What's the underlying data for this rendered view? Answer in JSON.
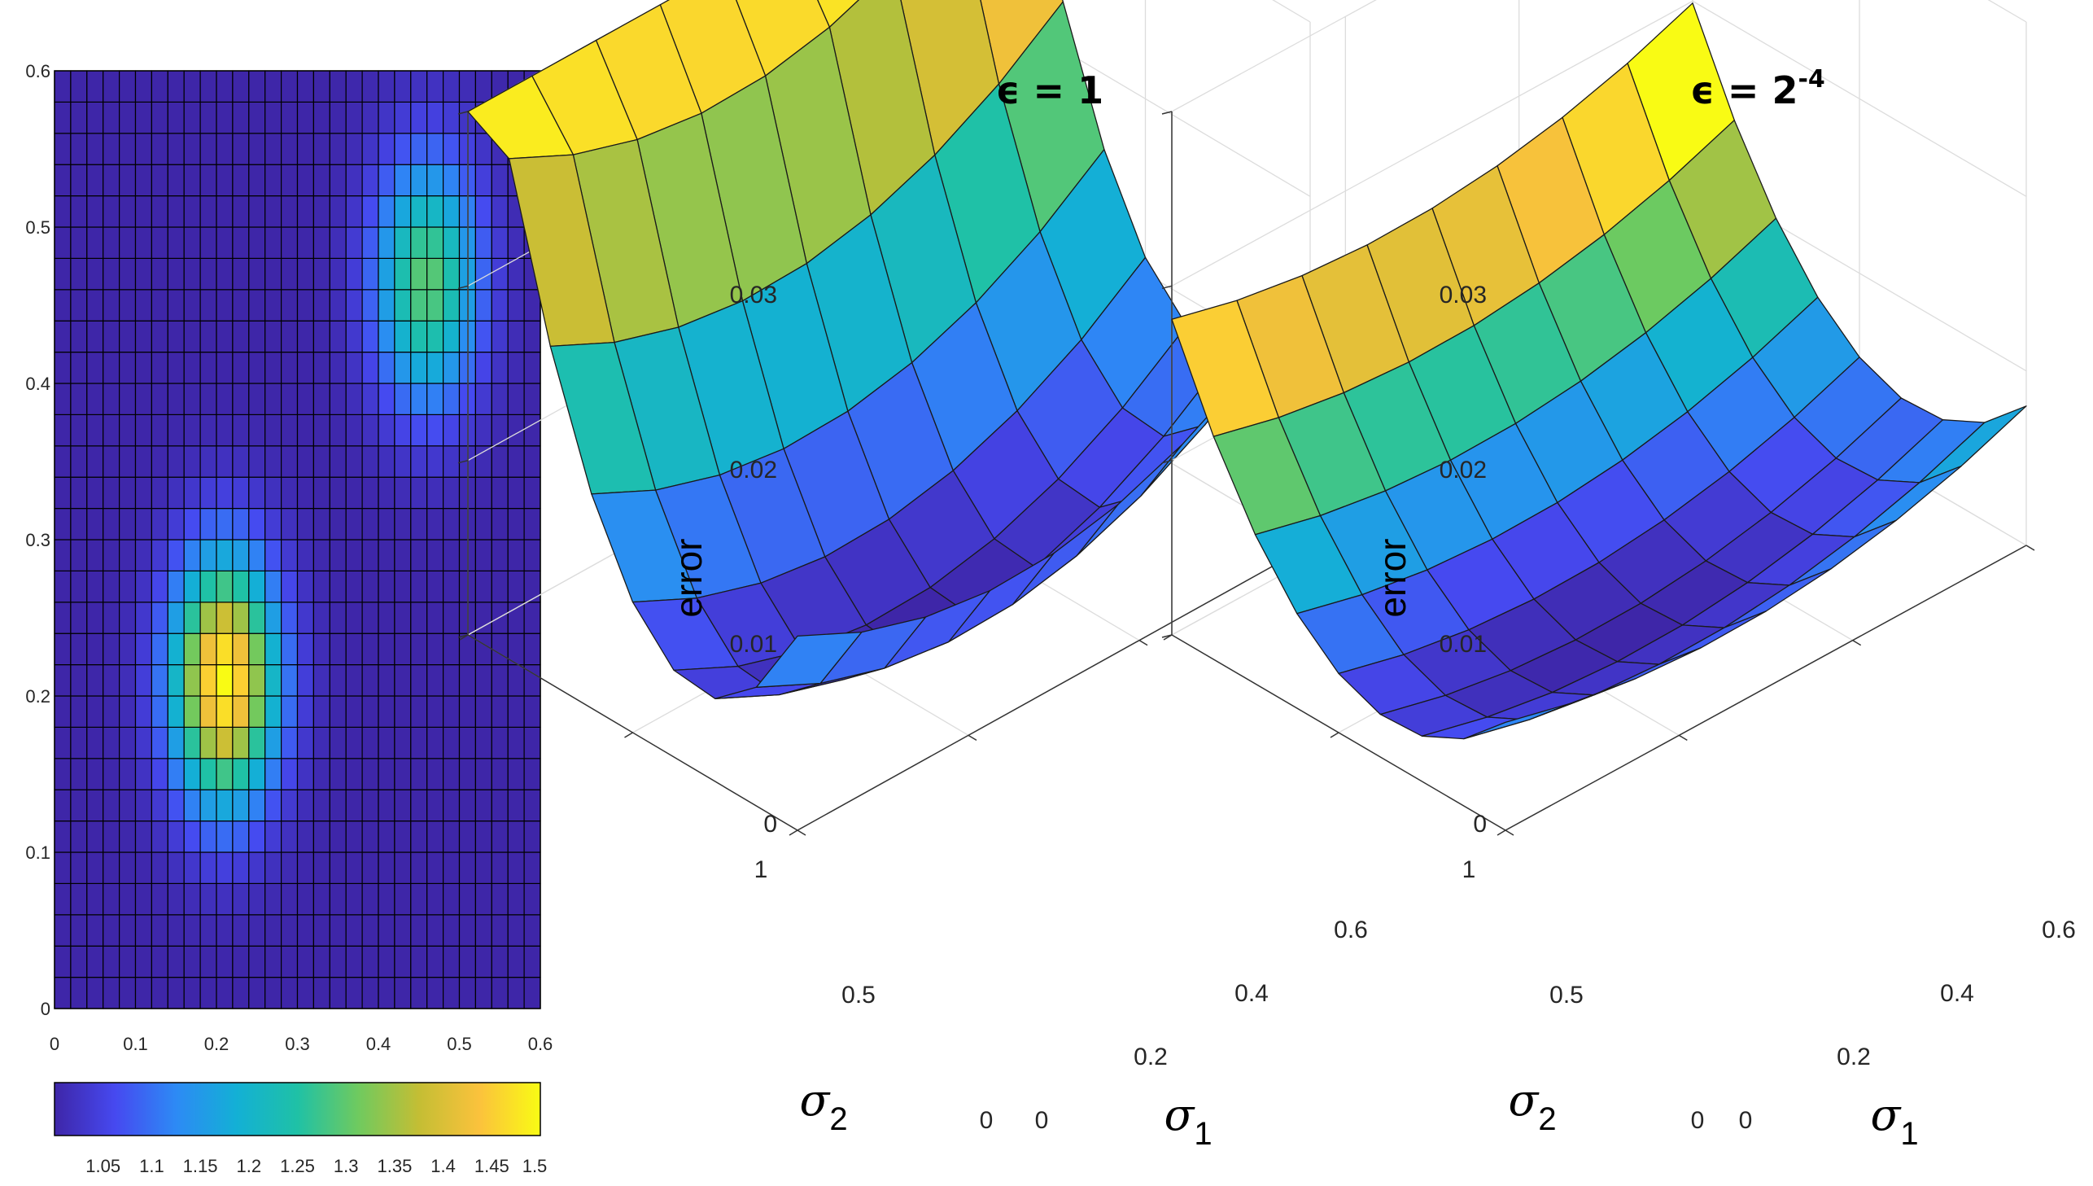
{
  "chart_data": [
    {
      "type": "heatmap",
      "title": "",
      "xlabel": "",
      "ylabel": "",
      "xlim": [
        0,
        0.6
      ],
      "ylim": [
        0,
        0.6
      ],
      "xticks": [
        "0",
        "0.1",
        "0.2",
        "0.3",
        "0.4",
        "0.5",
        "0.6"
      ],
      "yticks": [
        "0",
        "0.1",
        "0.2",
        "0.3",
        "0.4",
        "0.5",
        "0.6"
      ],
      "grid_cols": 30,
      "grid_rows": 30,
      "field": {
        "baseline": 1.0,
        "bumps": [
          {
            "cx": 0.21,
            "cy": 0.21,
            "sx": 0.045,
            "sy": 0.055,
            "amp": 0.5
          },
          {
            "cx": 0.46,
            "cy": 0.465,
            "sx": 0.045,
            "sy": 0.055,
            "amp": 0.3
          }
        ]
      },
      "colorbar": {
        "range": [
          1.0,
          1.5
        ],
        "ticks": [
          "1.05",
          "1.1",
          "1.15",
          "1.2",
          "1.25",
          "1.3",
          "1.35",
          "1.4",
          "1.45",
          "1.5"
        ]
      }
    },
    {
      "type": "surface",
      "title": "ϵ = 1",
      "title_base": "ϵ = 1",
      "title_exp": "",
      "zlabel": "error",
      "xlabel_symbol": "σ",
      "xlabel_sub": "1",
      "ylabel_symbol": "σ",
      "ylabel_sub": "2",
      "xlim": [
        0,
        0.6
      ],
      "ylim": [
        0,
        1
      ],
      "zlim": [
        0,
        0.03
      ],
      "xticks": [
        "0",
        "0.2",
        "0.4",
        "0.6"
      ],
      "yticks": [
        "0",
        "0.5",
        "1"
      ],
      "zticks": [
        "0",
        "0.01",
        "0.02",
        "0.03"
      ],
      "grid_n": 9,
      "model": {
        "a": 0.012,
        "b": 0.057,
        "s0": 0.25,
        "c": 0.016,
        "d": 0.073,
        "t0": 0.3,
        "r0": 0.001
      }
    },
    {
      "type": "surface",
      "title": "ϵ = 2^-4",
      "title_base": "ϵ = 2",
      "title_exp": "-4",
      "zlabel": "error",
      "xlabel_symbol": "σ",
      "xlabel_sub": "1",
      "ylabel_symbol": "σ",
      "ylabel_sub": "2",
      "xlim": [
        0,
        0.6
      ],
      "ylim": [
        0,
        1
      ],
      "zlim": [
        0,
        0.03
      ],
      "xticks": [
        "0",
        "0.2",
        "0.4",
        "0.6"
      ],
      "yticks": [
        "0",
        "0.5",
        "1"
      ],
      "zticks": [
        "0",
        "0.01",
        "0.02",
        "0.03"
      ],
      "grid_n": 9,
      "model": {
        "a": 0.006,
        "b": 0.03,
        "s0": 0.25,
        "c": 0.008,
        "d": 0.035,
        "t0": 0.33,
        "r0": 0.0005
      }
    }
  ]
}
